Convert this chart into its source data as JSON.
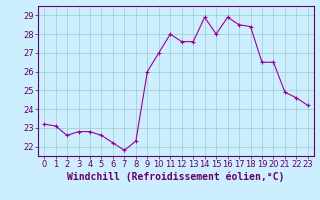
{
  "x": [
    0,
    1,
    2,
    3,
    4,
    5,
    6,
    7,
    8,
    9,
    10,
    11,
    12,
    13,
    14,
    15,
    16,
    17,
    18,
    19,
    20,
    21,
    22,
    23
  ],
  "y": [
    23.2,
    23.1,
    22.6,
    22.8,
    22.8,
    22.6,
    22.2,
    21.8,
    22.3,
    26.0,
    27.0,
    28.0,
    27.6,
    27.6,
    28.9,
    28.0,
    28.9,
    28.5,
    28.4,
    26.5,
    26.5,
    24.9,
    24.6,
    24.2
  ],
  "line_color": "#990099",
  "marker": "+",
  "marker_size": 3,
  "marker_color": "#990099",
  "bg_color": "#cceeff",
  "grid_color": "#99cccc",
  "xlabel": "Windchill (Refroidissement éolien,°C)",
  "xlabel_fontsize": 7,
  "xlabel_color": "#660066",
  "yticks": [
    22,
    23,
    24,
    25,
    26,
    27,
    28,
    29
  ],
  "xticks": [
    0,
    1,
    2,
    3,
    4,
    5,
    6,
    7,
    8,
    9,
    10,
    11,
    12,
    13,
    14,
    15,
    16,
    17,
    18,
    19,
    20,
    21,
    22,
    23
  ],
  "tick_fontsize": 6,
  "tick_color": "#660066",
  "ylim": [
    21.5,
    29.5
  ],
  "xlim": [
    -0.5,
    23.5
  ]
}
